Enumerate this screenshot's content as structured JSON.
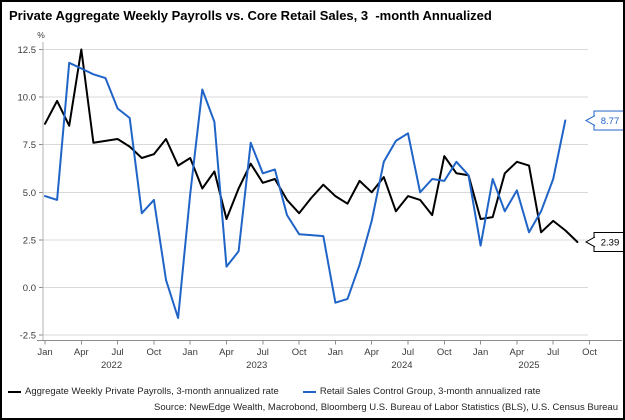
{
  "chart_data": {
    "type": "line",
    "title": "Private Aggregate Weekly Payrolls vs. Core Retail Sales, 3  -month Annualized",
    "ylabel": "%",
    "ylim": [
      -2.5,
      12.5
    ],
    "y_ticks": [
      12.5,
      10.0,
      7.5,
      5.0,
      2.5,
      0.0,
      -2.5
    ],
    "x_tick_labels": [
      "Jan",
      "Apr",
      "Jul",
      "Oct"
    ],
    "year_labels": [
      "2022",
      "2023",
      "2024",
      "2025"
    ],
    "grid": true,
    "legend_position": "bottom",
    "x": [
      "Jan 2022",
      "Feb 2022",
      "Mar 2022",
      "Apr 2022",
      "May 2022",
      "Jun 2022",
      "Jul 2022",
      "Aug 2022",
      "Sep 2022",
      "Oct 2022",
      "Nov 2022",
      "Dec 2022",
      "Jan 2023",
      "Feb 2023",
      "Mar 2023",
      "Apr 2023",
      "May 2023",
      "Jun 2023",
      "Jul 2023",
      "Aug 2023",
      "Sep 2023",
      "Oct 2023",
      "Nov 2023",
      "Dec 2023",
      "Jan 2024",
      "Feb 2024",
      "Mar 2024",
      "Apr 2024",
      "May 2024",
      "Jun 2024",
      "Jul 2024",
      "Aug 2024",
      "Sep 2024",
      "Oct 2024",
      "Nov 2024",
      "Dec 2024",
      "Jan 2025",
      "Feb 2025",
      "Mar 2025",
      "Apr 2025",
      "May 2025",
      "Jun 2025",
      "Jul 2025",
      "Aug 2025",
      "Sep 2025"
    ],
    "series": [
      {
        "id": "payrolls",
        "name": "Aggregate Weekly Private Payrolls, 3-month annualized rate",
        "color": "#000000",
        "end_label": "2.39",
        "values": [
          8.6,
          9.8,
          8.5,
          12.5,
          7.6,
          7.7,
          7.8,
          7.4,
          6.8,
          7.0,
          7.8,
          6.4,
          6.8,
          5.2,
          6.1,
          3.6,
          5.2,
          6.5,
          5.5,
          5.7,
          4.6,
          3.9,
          4.7,
          5.4,
          4.8,
          4.4,
          5.6,
          5.0,
          5.8,
          4.0,
          4.8,
          4.6,
          3.8,
          6.9,
          6.0,
          5.9,
          3.6,
          3.7,
          6.0,
          6.6,
          6.4,
          2.9,
          3.5,
          3.0,
          2.39
        ]
      },
      {
        "id": "retail",
        "name": "Retail Sales Control Group, 3-month annualized rate",
        "color": "#2064c8",
        "end_label": "8.77",
        "values": [
          4.8,
          4.6,
          11.8,
          11.5,
          11.2,
          11.0,
          9.4,
          8.9,
          3.9,
          4.6,
          0.4,
          -1.6,
          4.9,
          10.4,
          8.7,
          1.1,
          1.9,
          7.6,
          6.0,
          6.2,
          3.8,
          2.8,
          2.75,
          2.7,
          -0.8,
          -0.6,
          1.2,
          3.5,
          6.6,
          7.7,
          8.1,
          5.0,
          5.7,
          5.6,
          6.6,
          5.9,
          2.2,
          5.7,
          4.0,
          5.1,
          2.9,
          4.0,
          5.7,
          8.77,
          null
        ]
      }
    ]
  },
  "footer": {
    "source": "Source: NewEdge Wealth, Macrobond, Bloomberg U.S. Bureau of Labor Statistics (BLS), U.S. Census Bureau"
  }
}
